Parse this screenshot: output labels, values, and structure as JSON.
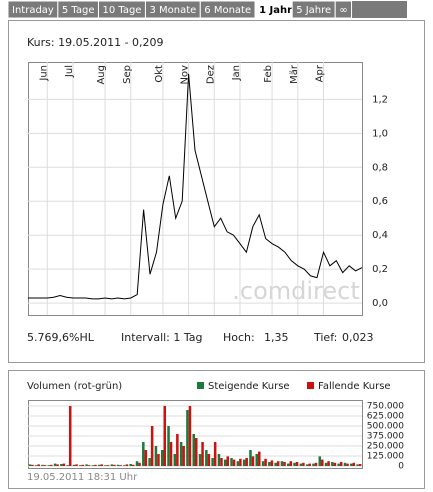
{
  "tabs": [
    "Intraday",
    "5 Tage",
    "10 Tage",
    "3 Monate",
    "6 Monate",
    "1 Jahr",
    "5 Jahre",
    "∞"
  ],
  "active_tab": 5,
  "chart_data": [
    {
      "type": "line",
      "title": "Kurs: 19.05.2011 - 0,209",
      "watermark": ".comdirect",
      "color": "#000000",
      "grid": true,
      "categories": [
        null,
        null,
        null,
        "Jun",
        null,
        null,
        null,
        "Jul",
        null,
        null,
        null,
        null,
        "Aug",
        null,
        null,
        null,
        "Sep",
        null,
        null,
        null,
        null,
        "Okt",
        null,
        null,
        null,
        "Nov",
        null,
        null,
        null,
        "Dez",
        null,
        null,
        null,
        "Jan",
        null,
        null,
        null,
        null,
        "Feb",
        null,
        null,
        null,
        "Mär",
        null,
        null,
        null,
        "Apr",
        null,
        null,
        null,
        null,
        null,
        null
      ],
      "values": [
        0.03,
        0.03,
        0.03,
        0.03,
        0.035,
        0.045,
        0.035,
        0.03,
        0.03,
        0.03,
        0.025,
        0.025,
        0.03,
        0.025,
        0.03,
        0.025,
        0.03,
        0.05,
        0.55,
        0.17,
        0.3,
        0.58,
        0.75,
        0.5,
        0.6,
        1.35,
        0.9,
        0.75,
        0.6,
        0.45,
        0.5,
        0.42,
        0.4,
        0.35,
        0.3,
        0.45,
        0.52,
        0.38,
        0.35,
        0.33,
        0.3,
        0.25,
        0.22,
        0.2,
        0.16,
        0.15,
        0.3,
        0.22,
        0.25,
        0.18,
        0.22,
        0.19,
        0.209
      ],
      "ylim": [
        -0.07,
        1.42
      ],
      "yticks": [
        {
          "value": 0,
          "label": "0,0"
        },
        {
          "value": 0.2,
          "label": "0,2"
        },
        {
          "value": 0.4,
          "label": "0,4"
        },
        {
          "value": 0.6,
          "label": "0,6"
        },
        {
          "value": 0.8,
          "label": "0,8"
        },
        {
          "value": 1.0,
          "label": "1,0"
        },
        {
          "value": 1.2,
          "label": "1,2"
        }
      ],
      "stats": [
        "5.769,6%HL",
        "Intervall: 1 Tag",
        "Hoch:",
        "1,35",
        "Tief:",
        "0,023"
      ]
    },
    {
      "type": "bar",
      "title": "Volumen (rot-grün)",
      "footer": "19.05.2011 18:31 Uhr",
      "grid": true,
      "series": [
        {
          "name": "Steigende Kurse",
          "color": "#1a7a3a",
          "values": [
            20000,
            10000,
            15000,
            10000,
            30000,
            25000,
            10000,
            15000,
            10000,
            20000,
            10000,
            15000,
            10000,
            20000,
            15000,
            10000,
            25000,
            60000,
            300000,
            100000,
            250000,
            200000,
            500000,
            150000,
            300000,
            700000,
            400000,
            150000,
            200000,
            100000,
            150000,
            80000,
            100000,
            60000,
            80000,
            200000,
            150000,
            60000,
            50000,
            40000,
            60000,
            30000,
            40000,
            30000,
            20000,
            30000,
            120000,
            40000,
            50000,
            30000,
            40000,
            30000,
            20000
          ]
        },
        {
          "name": "Fallende Kurse",
          "color": "#cc1111",
          "values": [
            15000,
            20000,
            10000,
            15000,
            20000,
            30000,
            750000,
            20000,
            15000,
            10000,
            15000,
            20000,
            10000,
            15000,
            10000,
            20000,
            15000,
            40000,
            200000,
            500000,
            150000,
            750000,
            300000,
            400000,
            250000,
            750000,
            350000,
            300000,
            150000,
            300000,
            100000,
            120000,
            80000,
            90000,
            100000,
            120000,
            180000,
            90000,
            70000,
            60000,
            50000,
            60000,
            50000,
            40000,
            30000,
            40000,
            80000,
            60000,
            40000,
            50000,
            30000,
            40000,
            25000
          ]
        }
      ],
      "ylim": [
        -25000,
        825000
      ],
      "yticks": [
        0,
        {
          "value": 125000,
          "label": "125.000"
        },
        {
          "value": 250000,
          "label": "250.000"
        },
        {
          "value": 375000,
          "label": "375.000"
        },
        {
          "value": 500000,
          "label": "500.000"
        },
        {
          "value": 625000,
          "label": "625.000"
        },
        {
          "value": 750000,
          "label": "750.000"
        }
      ]
    }
  ]
}
